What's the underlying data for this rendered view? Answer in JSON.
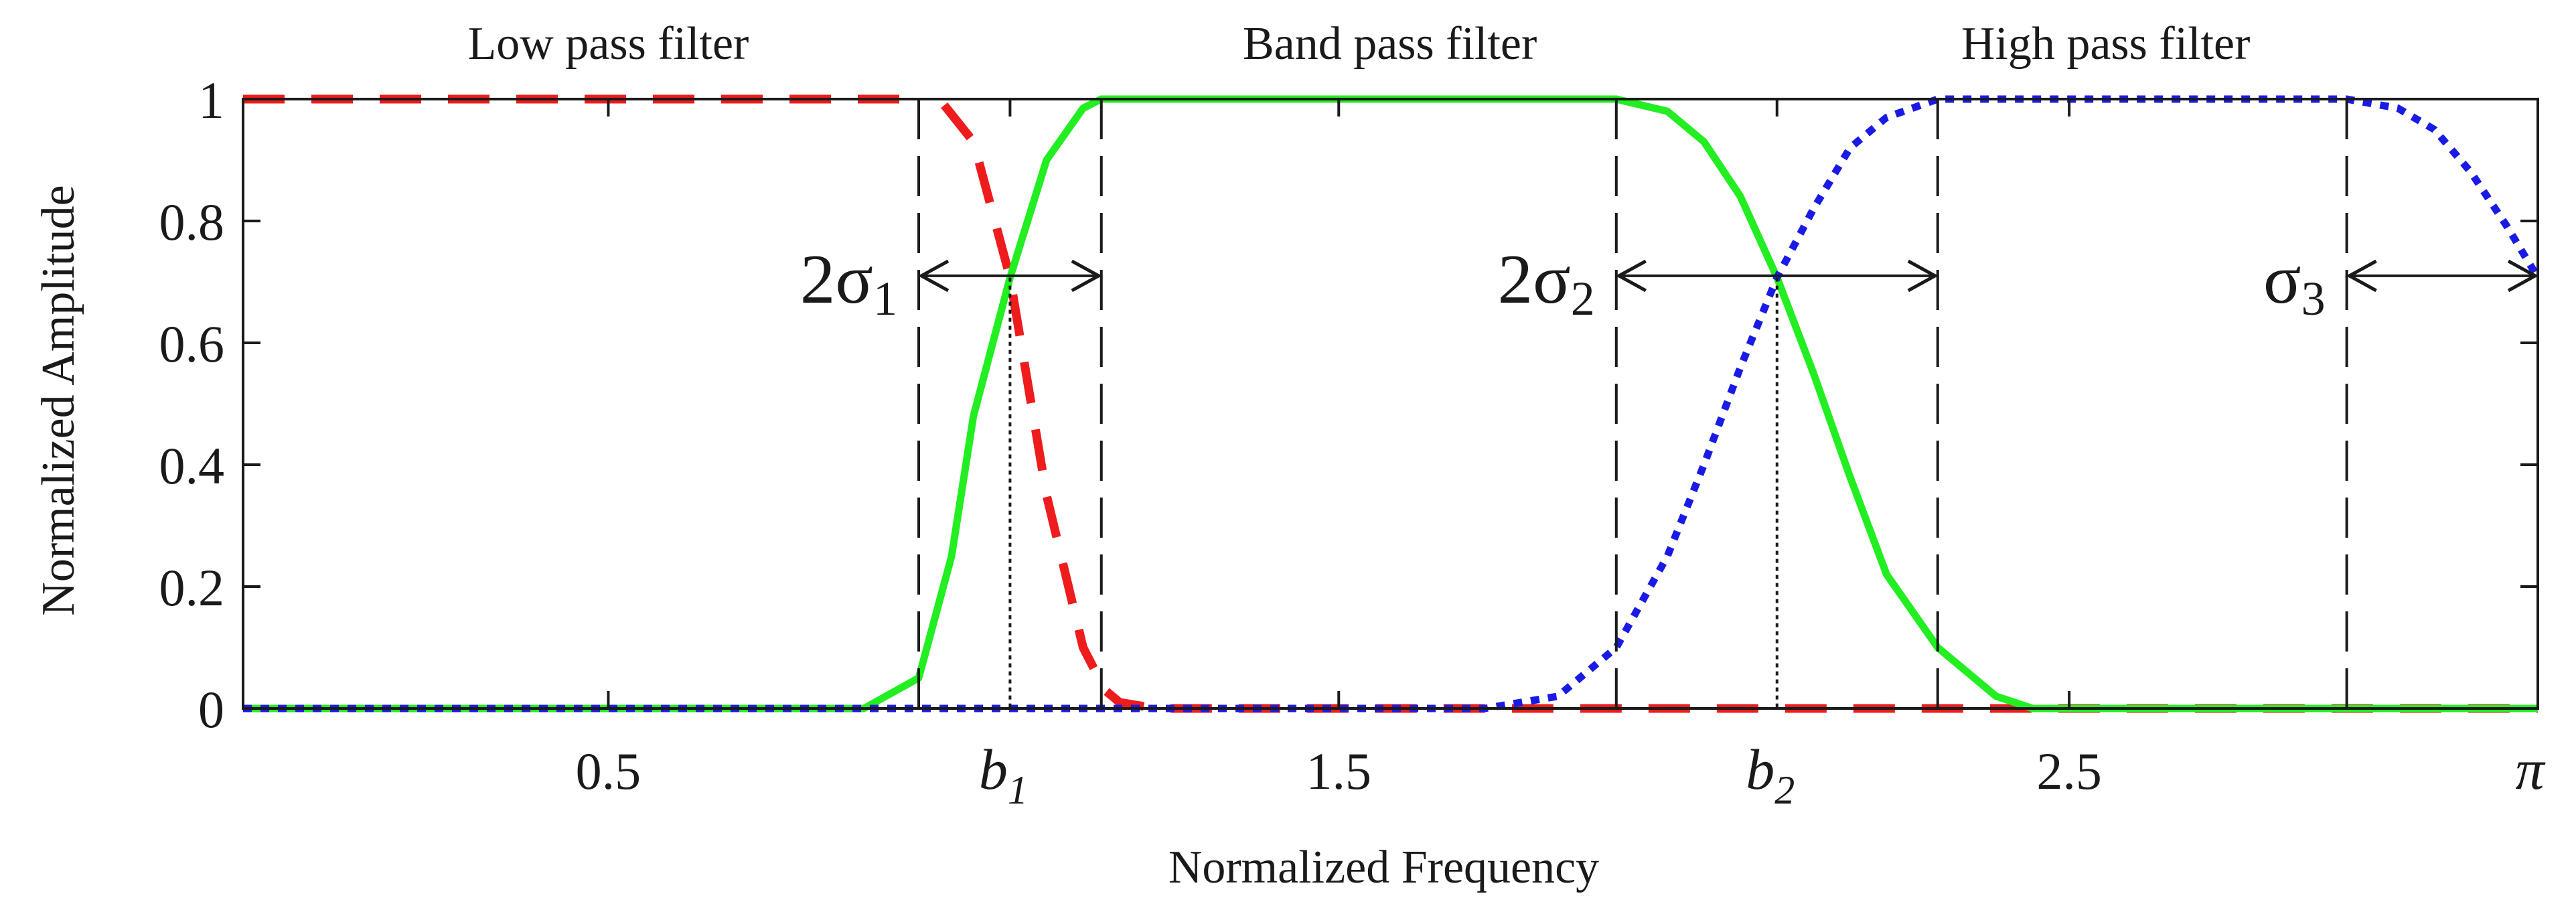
{
  "chart_data": {
    "type": "line",
    "xlabel": "Normalized Frequency",
    "ylabel": "Normalized Amplitude",
    "xlim": [
      0,
      3.1416
    ],
    "ylim": [
      0,
      1
    ],
    "grid": false,
    "y_ticks": [
      {
        "value": 0,
        "label": "0"
      },
      {
        "value": 0.2,
        "label": "0.2"
      },
      {
        "value": 0.4,
        "label": "0.4"
      },
      {
        "value": 0.6,
        "label": "0.6"
      },
      {
        "value": 0.8,
        "label": "0.8"
      },
      {
        "value": 1,
        "label": "1"
      }
    ],
    "x_ticks": [
      {
        "value": 0.5,
        "label": "0.5"
      },
      {
        "value": 1.5,
        "label": "1.5"
      },
      {
        "value": 2.5,
        "label": "2.5"
      }
    ],
    "x_ticks_symbolic": [
      {
        "value": 1.05,
        "label": "b",
        "subscript": "1"
      },
      {
        "value": 2.1,
        "label": "b",
        "subscript": "2"
      },
      {
        "value": 3.1416,
        "label": "π",
        "subscript": ""
      }
    ],
    "region_labels": [
      {
        "text": "Low pass filter",
        "x": 0.5
      },
      {
        "text": "Band pass filter",
        "x": 1.57
      },
      {
        "text": "High pass filter",
        "x": 2.55
      }
    ],
    "boundaries": [
      0.925,
      1.175,
      1.88,
      2.32,
      2.88
    ],
    "crossings": [
      {
        "x": 1.05,
        "y": 0.707
      },
      {
        "x": 2.1,
        "y": 0.707
      }
    ],
    "annotations": [
      {
        "main": "2σ",
        "sub": "1",
        "from": 0.925,
        "to": 1.175,
        "y": 0.71,
        "label_side": "left"
      },
      {
        "main": "2σ",
        "sub": "2",
        "from": 1.88,
        "to": 2.32,
        "y": 0.71,
        "label_side": "left"
      },
      {
        "main": "σ",
        "sub": "3",
        "from": 2.88,
        "to": 3.1416,
        "y": 0.71,
        "label_side": "left"
      }
    ],
    "series": [
      {
        "role": "low-pass",
        "color": "#ee1c1c",
        "style": "dashed",
        "x": [
          0,
          0.925,
          0.925,
          0.96,
          1.0,
          1.05,
          1.1,
          1.15,
          1.18,
          1.2,
          1.25,
          1.5,
          1.9,
          2.0,
          2.5,
          3.1416
        ],
        "y": [
          1,
          1,
          null,
          0.99,
          0.93,
          0.707,
          0.35,
          0.1,
          0.03,
          0.01,
          0,
          0,
          0,
          0,
          0,
          0
        ]
      },
      {
        "role": "band-pass",
        "color": "#22ee22",
        "style": "solid",
        "x": [
          0,
          0.85,
          0.925,
          0.97,
          1.0,
          1.05,
          1.1,
          1.15,
          1.175,
          1.5,
          1.88,
          1.95,
          2.0,
          2.05,
          2.1,
          2.15,
          2.2,
          2.25,
          2.32,
          2.4,
          2.45,
          3.1416
        ],
        "y": [
          0,
          0,
          0.05,
          0.25,
          0.48,
          0.707,
          0.9,
          0.985,
          1,
          1,
          1,
          0.98,
          0.93,
          0.84,
          0.707,
          0.55,
          0.38,
          0.22,
          0.1,
          0.02,
          0,
          0
        ]
      },
      {
        "role": "high-pass",
        "color": "#1a1ae6",
        "style": "dotted",
        "x": [
          0,
          1.6,
          1.7,
          1.8,
          1.88,
          1.95,
          2.0,
          2.05,
          2.1,
          2.15,
          2.2,
          2.25,
          2.32,
          2.5,
          2.88,
          2.95,
          3.0,
          3.05,
          3.1,
          3.1416
        ],
        "y": [
          0,
          0,
          0,
          0.02,
          0.1,
          0.25,
          0.4,
          0.56,
          0.707,
          0.82,
          0.92,
          0.97,
          1,
          1,
          1,
          0.985,
          0.95,
          0.88,
          0.79,
          0.707
        ]
      }
    ]
  },
  "colors": {
    "axis": "#1a1a1a",
    "low_pass": "#ee1c1c",
    "band_pass": "#22ee22",
    "high_pass": "#1a1ae6"
  }
}
